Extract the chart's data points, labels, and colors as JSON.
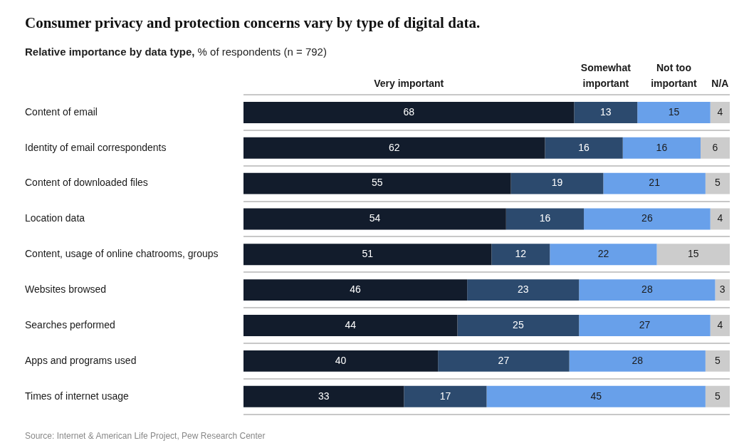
{
  "chart_data": {
    "type": "bar",
    "orientation": "horizontal",
    "stacked": true,
    "title": "Consumer privacy and protection concerns vary by type of digital data.",
    "subtitle": "Relative importance by data type, % of respondents (n = 792)",
    "categories": [
      "Content of email",
      "Identity of email correspondents",
      "Content of downloaded files",
      "Location data",
      "Content, usage of online chatrooms, groups",
      "Websites browsed",
      "Searches performed",
      "Apps and programs used",
      "Times of internet usage"
    ],
    "series": [
      {
        "name": "Very important",
        "color": "#121c2c",
        "values": [
          68,
          62,
          55,
          54,
          51,
          46,
          44,
          40,
          33
        ]
      },
      {
        "name": "Somewhat important",
        "color": "#2c4a6e",
        "values": [
          13,
          16,
          19,
          16,
          12,
          23,
          25,
          27,
          17
        ]
      },
      {
        "name": "Not too important",
        "color": "#68a0ea",
        "values": [
          15,
          16,
          21,
          26,
          22,
          28,
          27,
          28,
          45
        ]
      },
      {
        "name": "N/A",
        "color": "#cccccc",
        "values": [
          4,
          6,
          5,
          4,
          15,
          3,
          4,
          5,
          5
        ]
      }
    ],
    "xlim": [
      0,
      100
    ],
    "tick_labels": "y",
    "grid": "y",
    "legend": "top",
    "data_labels": true,
    "annotations": [
      "Source: Internet & American Life Project, Pew Research Center"
    ]
  }
}
